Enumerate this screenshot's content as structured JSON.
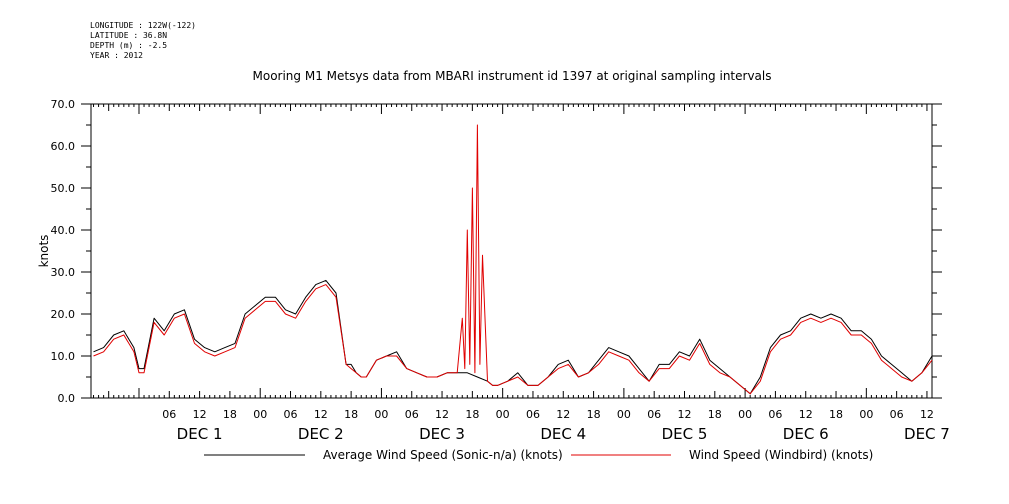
{
  "meta": {
    "longitude": "LONGITUDE : 122W(-122)",
    "latitude": "LATITUDE : 36.8N",
    "depth": "DEPTH (m) : -2.5",
    "year": "YEAR : 2012"
  },
  "chart_data": {
    "type": "line",
    "title": "Mooring M1 Metsys data from MBARI instrument id 1397 at original sampling intervals",
    "ylabel": "knots",
    "xlabel": "",
    "ylim": [
      0,
      70
    ],
    "yticks": [
      0,
      10,
      20,
      30,
      40,
      50,
      60,
      70
    ],
    "xlim_hours": [
      -9.5,
      157
    ],
    "hour_ticks": [
      {
        "h": 6,
        "label": "06"
      },
      {
        "h": 12,
        "label": "12"
      },
      {
        "h": 18,
        "label": "18"
      },
      {
        "h": 24,
        "label": "00"
      },
      {
        "h": 30,
        "label": "06"
      },
      {
        "h": 36,
        "label": "12"
      },
      {
        "h": 42,
        "label": "18"
      },
      {
        "h": 48,
        "label": "00"
      },
      {
        "h": 54,
        "label": "06"
      },
      {
        "h": 60,
        "label": "12"
      },
      {
        "h": 66,
        "label": "18"
      },
      {
        "h": 72,
        "label": "00"
      },
      {
        "h": 78,
        "label": "06"
      },
      {
        "h": 84,
        "label": "12"
      },
      {
        "h": 90,
        "label": "18"
      },
      {
        "h": 96,
        "label": "00"
      },
      {
        "h": 102,
        "label": "06"
      },
      {
        "h": 108,
        "label": "12"
      },
      {
        "h": 114,
        "label": "18"
      },
      {
        "h": 120,
        "label": "00"
      },
      {
        "h": 126,
        "label": "06"
      },
      {
        "h": 132,
        "label": "12"
      },
      {
        "h": 138,
        "label": "18"
      },
      {
        "h": 144,
        "label": "00"
      },
      {
        "h": 150,
        "label": "06"
      },
      {
        "h": 156,
        "label": "12"
      }
    ],
    "day_labels": [
      {
        "h": 12,
        "label": "DEC 1"
      },
      {
        "h": 36,
        "label": "DEC 2"
      },
      {
        "h": 60,
        "label": "DEC 3"
      },
      {
        "h": 84,
        "label": "DEC 4"
      },
      {
        "h": 108,
        "label": "DEC 5"
      },
      {
        "h": 132,
        "label": "DEC 6"
      },
      {
        "h": 156,
        "label": "DEC 7"
      }
    ],
    "series": [
      {
        "name": "Average Wind Speed (Sonic-n/a) (knots)",
        "color": "#000000",
        "x": [
          -9,
          -7,
          -5,
          -3,
          -1,
          0,
          1,
          3,
          5,
          7,
          9,
          11,
          13,
          15,
          17,
          19,
          21,
          23,
          25,
          27,
          29,
          31,
          33,
          35,
          37,
          39,
          41,
          42,
          43,
          44,
          45,
          47,
          49,
          51,
          53,
          55,
          57,
          59,
          61,
          63,
          65,
          67,
          69,
          70,
          71,
          73,
          75,
          77,
          79,
          81,
          83,
          85,
          87,
          89,
          91,
          93,
          95,
          97,
          99,
          101,
          103,
          105,
          107,
          109,
          111,
          113,
          115,
          117,
          119,
          121,
          123,
          125,
          127,
          129,
          131,
          133,
          135,
          137,
          139,
          141,
          143,
          145,
          147,
          149,
          151,
          153,
          155,
          157
        ],
        "y": [
          11,
          12,
          15,
          16,
          12,
          7,
          7,
          19,
          16,
          20,
          21,
          14,
          12,
          11,
          12,
          13,
          20,
          22,
          24,
          24,
          21,
          20,
          24,
          27,
          28,
          25,
          8,
          8,
          6,
          5,
          5,
          9,
          10,
          11,
          7,
          6,
          5,
          5,
          6,
          6,
          6,
          5,
          4,
          3,
          3,
          4,
          6,
          3,
          3,
          5,
          8,
          9,
          5,
          6,
          9,
          12,
          11,
          10,
          7,
          4,
          8,
          8,
          11,
          10,
          14,
          9,
          7,
          5,
          3,
          1,
          5,
          12,
          15,
          16,
          19,
          20,
          19,
          20,
          19,
          16,
          16,
          14,
          10,
          8,
          6,
          4,
          6,
          10
        ]
      },
      {
        "name": "Wind Speed (Windbird) (knots)",
        "color": "#e00000",
        "x": [
          -9,
          -7,
          -5,
          -3,
          -1,
          0,
          1,
          3,
          5,
          7,
          9,
          11,
          13,
          15,
          17,
          19,
          21,
          23,
          25,
          27,
          29,
          31,
          33,
          35,
          37,
          39,
          41,
          42,
          43,
          44,
          45,
          47,
          49,
          51,
          53,
          55,
          57,
          59,
          61,
          63,
          64,
          64.5,
          65,
          65.5,
          66,
          66.5,
          67,
          67.5,
          68,
          69,
          70,
          71,
          73,
          75,
          77,
          79,
          81,
          83,
          85,
          87,
          89,
          91,
          93,
          95,
          97,
          99,
          101,
          103,
          105,
          107,
          109,
          111,
          113,
          115,
          117,
          119,
          121,
          123,
          125,
          127,
          129,
          131,
          133,
          135,
          137,
          139,
          141,
          143,
          145,
          147,
          149,
          151,
          153,
          155,
          157
        ],
        "y": [
          10,
          11,
          14,
          15,
          11,
          6,
          6,
          18,
          15,
          19,
          20,
          13,
          11,
          10,
          11,
          12,
          19,
          21,
          23,
          23,
          20,
          19,
          23,
          26,
          27,
          24,
          8,
          7,
          6,
          5,
          5,
          9,
          10,
          10,
          7,
          6,
          5,
          5,
          6,
          6,
          19,
          7,
          40,
          8,
          50,
          6,
          65,
          8,
          34,
          4,
          3,
          3,
          4,
          5,
          3,
          3,
          5,
          7,
          8,
          5,
          6,
          8,
          11,
          10,
          9,
          6,
          4,
          7,
          7,
          10,
          9,
          13,
          8,
          6,
          5,
          3,
          1,
          4,
          11,
          14,
          15,
          18,
          19,
          18,
          19,
          18,
          15,
          15,
          13,
          9,
          7,
          5,
          4,
          6,
          9
        ]
      }
    ]
  }
}
